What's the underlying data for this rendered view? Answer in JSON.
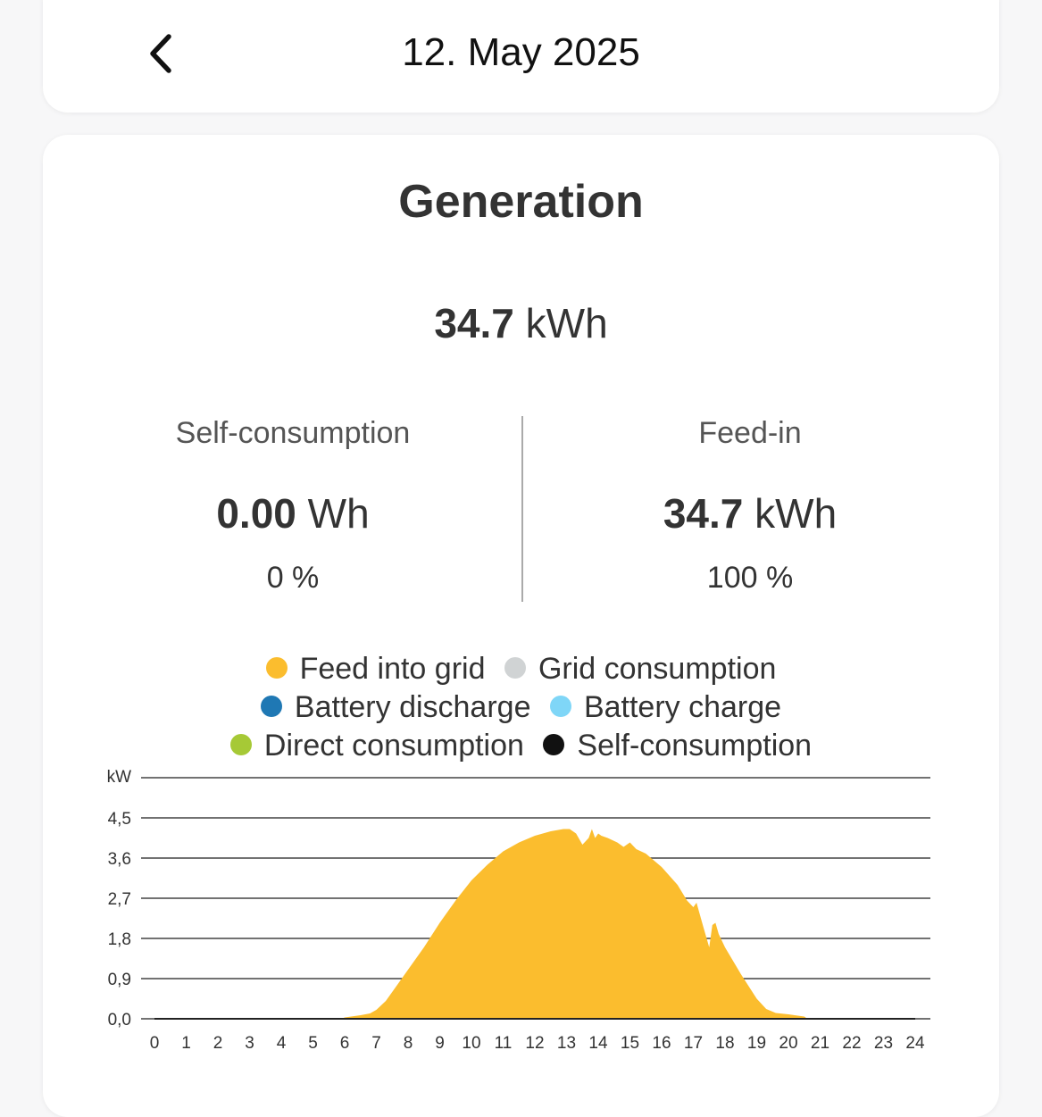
{
  "header": {
    "date": "12. May 2025",
    "back_icon": "chevron-left-icon"
  },
  "generation": {
    "title": "Generation",
    "total_value": "34.7",
    "total_unit": "kWh"
  },
  "self_consumption": {
    "label": "Self-consumption",
    "value": "0.00",
    "unit": "Wh",
    "percent": "0 %"
  },
  "feed_in": {
    "label": "Feed-in",
    "value": "34.7",
    "unit": "kWh",
    "percent": "100 %"
  },
  "legend": [
    {
      "label": "Feed into grid",
      "color": "#fbbd2e"
    },
    {
      "label": "Grid consumption",
      "color": "#d0d3d4"
    },
    {
      "label": "Battery discharge",
      "color": "#1f78b4"
    },
    {
      "label": "Battery charge",
      "color": "#7fd6f7"
    },
    {
      "label": "Direct consumption",
      "color": "#a6c936"
    },
    {
      "label": "Self-consumption",
      "color": "#111111"
    }
  ],
  "chart_data": {
    "type": "area",
    "ylabel": "kW",
    "ylim": [
      0,
      5.4
    ],
    "yticks": [
      "0,0",
      "0,9",
      "1,8",
      "2,7",
      "3,6",
      "4,5"
    ],
    "xlim": [
      0,
      24
    ],
    "xticks": [
      "0",
      "1",
      "2",
      "3",
      "4",
      "5",
      "6",
      "7",
      "8",
      "9",
      "10",
      "11",
      "12",
      "13",
      "14",
      "15",
      "16",
      "17",
      "18",
      "19",
      "20",
      "21",
      "22",
      "23",
      "24"
    ],
    "grid": true,
    "series": [
      {
        "name": "Feed into grid",
        "color": "#fbbd2e",
        "x": [
          0,
          5.9,
          6.0,
          6.5,
          6.8,
          7.0,
          7.3,
          7.6,
          8.0,
          8.5,
          9.0,
          9.5,
          10.0,
          10.5,
          11.0,
          11.5,
          12.0,
          12.5,
          12.9,
          13.1,
          13.3,
          13.5,
          13.7,
          13.8,
          13.9,
          14.0,
          14.1,
          14.3,
          14.6,
          14.8,
          15.0,
          15.2,
          15.5,
          16.0,
          16.5,
          16.8,
          17.0,
          17.1,
          17.3,
          17.5,
          17.6,
          17.7,
          17.8,
          18.0,
          18.5,
          19.0,
          19.3,
          19.6,
          20.0,
          20.3,
          20.5,
          20.6,
          24
        ],
        "y": [
          0,
          0,
          0.03,
          0.08,
          0.12,
          0.2,
          0.4,
          0.7,
          1.1,
          1.6,
          2.15,
          2.65,
          3.1,
          3.45,
          3.75,
          3.95,
          4.1,
          4.2,
          4.25,
          4.25,
          4.15,
          3.9,
          4.05,
          4.25,
          4.05,
          4.15,
          4.1,
          4.05,
          3.95,
          3.85,
          3.95,
          3.8,
          3.7,
          3.4,
          3.0,
          2.65,
          2.5,
          2.6,
          2.1,
          1.6,
          2.1,
          2.15,
          1.9,
          1.6,
          1.0,
          0.45,
          0.22,
          0.13,
          0.1,
          0.07,
          0.05,
          0,
          0
        ]
      }
    ]
  }
}
